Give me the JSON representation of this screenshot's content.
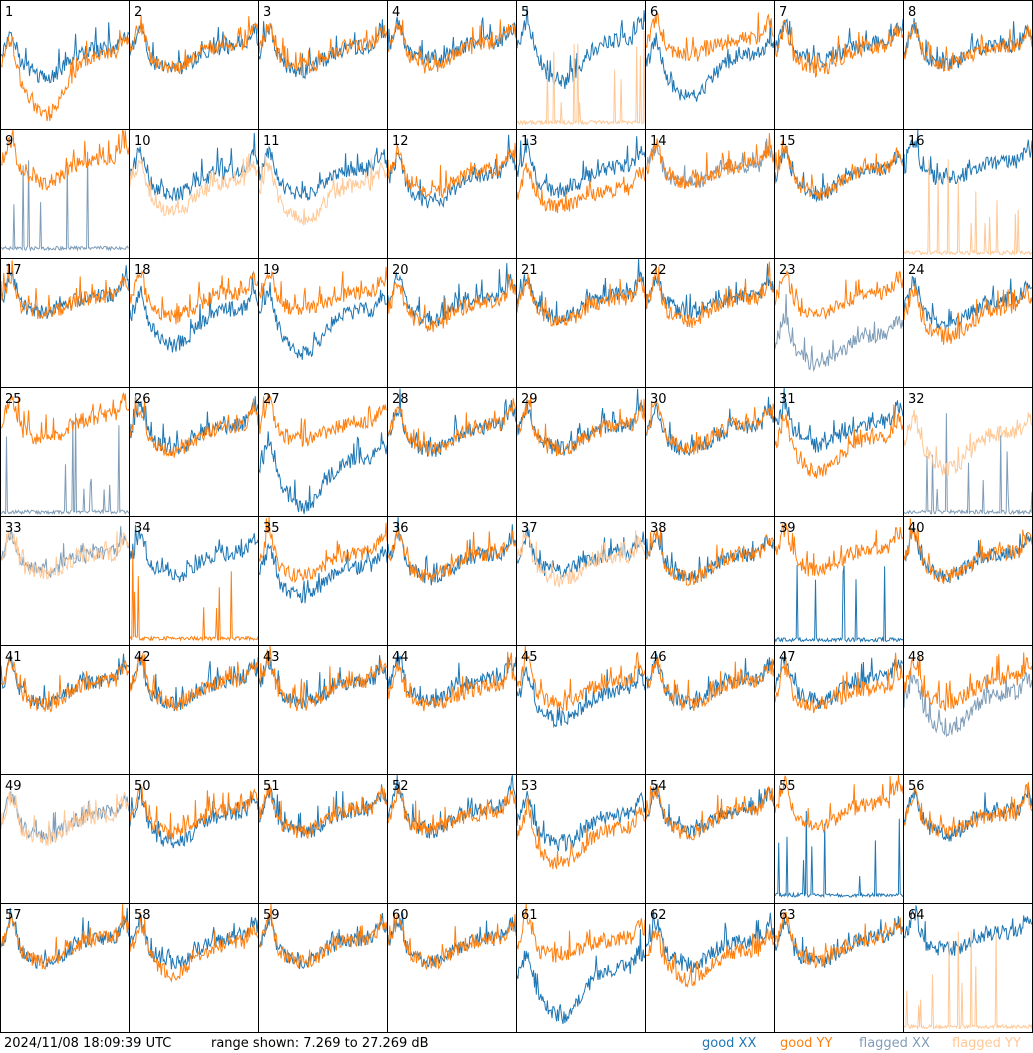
{
  "footer": {
    "timestamp": "2024/11/08 18:09:39 UTC",
    "range": "range shown: 7.269 to 27.269 dB"
  },
  "legend": [
    {
      "label": "good XX",
      "color": "#1f77b4"
    },
    {
      "label": "good YY",
      "color": "#ff7f0e"
    },
    {
      "label": "flagged XX",
      "color": "#7f9db8"
    },
    {
      "label": "flagged YY",
      "color": "#ffc896"
    }
  ],
  "chart_data": {
    "type": "line",
    "layout": "8x8 small multiples",
    "ylim": [
      7.269,
      27.269
    ],
    "ylabel": "",
    "panels": [
      {
        "id": "1",
        "xx": {
          "status": "good",
          "level": 18.6,
          "dip": 4
        },
        "yy": {
          "status": "good",
          "level": 17.8,
          "dip": 9
        }
      },
      {
        "id": "2",
        "xx": {
          "status": "good",
          "level": 19.0,
          "dip": 3
        },
        "yy": {
          "status": "good",
          "level": 19.3,
          "dip": 3
        }
      },
      {
        "id": "3",
        "xx": {
          "status": "good",
          "level": 18.8,
          "dip": 3
        },
        "yy": {
          "status": "good",
          "level": 19.2,
          "dip": 3
        }
      },
      {
        "id": "4",
        "xx": {
          "status": "good",
          "level": 19.6,
          "dip": 2
        },
        "yy": {
          "status": "good",
          "level": 19.4,
          "dip": 3
        }
      },
      {
        "id": "5",
        "xx": {
          "status": "good",
          "level": 20.0,
          "dip": 6
        },
        "yy": {
          "status": "flagged",
          "level": 8.0,
          "spikes": true
        }
      },
      {
        "id": "6",
        "xx": {
          "status": "good",
          "level": 17.5,
          "dip": 6
        },
        "yy": {
          "status": "good",
          "level": 20.2,
          "dip": 2
        }
      },
      {
        "id": "7",
        "xx": {
          "status": "good",
          "level": 19.4,
          "dip": 2
        },
        "yy": {
          "status": "good",
          "level": 19.0,
          "dip": 3
        }
      },
      {
        "id": "8",
        "xx": {
          "status": "good",
          "level": 19.0,
          "dip": 2
        },
        "yy": {
          "status": "good",
          "level": 18.8,
          "dip": 2
        }
      },
      {
        "id": "9",
        "xx": {
          "status": "flagged",
          "level": 8.5,
          "spikes": true
        },
        "yy": {
          "status": "good",
          "level": 21.5,
          "dip": 3
        }
      },
      {
        "id": "10",
        "xx": {
          "status": "good",
          "level": 19.6,
          "dip": 3
        },
        "yy": {
          "status": "flagged",
          "level": 18.0,
          "dip": 4
        }
      },
      {
        "id": "11",
        "xx": {
          "status": "good",
          "level": 19.8,
          "dip": 3
        },
        "yy": {
          "status": "flagged",
          "level": 17.6,
          "dip": 5
        }
      },
      {
        "id": "12",
        "xx": {
          "status": "good",
          "level": 19.2,
          "dip": 4
        },
        "yy": {
          "status": "good",
          "level": 19.8,
          "dip": 3
        }
      },
      {
        "id": "13",
        "xx": {
          "status": "good",
          "level": 20.2,
          "dip": 3
        },
        "yy": {
          "status": "good",
          "level": 16.8,
          "dip": 2
        }
      },
      {
        "id": "14",
        "xx": {
          "status": "flagged",
          "level": 20.4,
          "dip": 2
        },
        "yy": {
          "status": "good",
          "level": 20.6,
          "dip": 2
        }
      },
      {
        "id": "15",
        "xx": {
          "status": "good",
          "level": 19.8,
          "dip": 3
        },
        "yy": {
          "status": "good",
          "level": 20.0,
          "dip": 3
        }
      },
      {
        "id": "16",
        "xx": {
          "status": "good",
          "level": 21.0,
          "dip": 2
        },
        "yy": {
          "status": "flagged",
          "level": 7.8,
          "spikes": true
        }
      },
      {
        "id": "17",
        "xx": {
          "status": "good",
          "level": 20.4,
          "dip": 2
        },
        "yy": {
          "status": "good",
          "level": 20.2,
          "dip": 2
        }
      },
      {
        "id": "18",
        "xx": {
          "status": "good",
          "level": 18.2,
          "dip": 5
        },
        "yy": {
          "status": "good",
          "level": 20.6,
          "dip": 3
        }
      },
      {
        "id": "19",
        "xx": {
          "status": "good",
          "level": 18.0,
          "dip": 6
        },
        "yy": {
          "status": "good",
          "level": 20.8,
          "dip": 2
        }
      },
      {
        "id": "20",
        "xx": {
          "status": "good",
          "level": 20.2,
          "dip": 3
        },
        "yy": {
          "status": "good",
          "level": 19.4,
          "dip": 3
        }
      },
      {
        "id": "21",
        "xx": {
          "status": "good",
          "level": 20.4,
          "dip": 3
        },
        "yy": {
          "status": "good",
          "level": 19.8,
          "dip": 3
        }
      },
      {
        "id": "22",
        "xx": {
          "status": "good",
          "level": 20.2,
          "dip": 2
        },
        "yy": {
          "status": "good",
          "level": 20.0,
          "dip": 3
        }
      },
      {
        "id": "23",
        "xx": {
          "status": "flagged",
          "level": 14.0,
          "dip": 4
        },
        "yy": {
          "status": "good",
          "level": 20.8,
          "dip": 3
        }
      },
      {
        "id": "24",
        "xx": {
          "status": "good",
          "level": 19.6,
          "dip": 3
        },
        "yy": {
          "status": "good",
          "level": 18.4,
          "dip": 4
        }
      },
      {
        "id": "25",
        "xx": {
          "status": "flagged",
          "level": 7.6,
          "spikes": true
        },
        "yy": {
          "status": "good",
          "level": 21.6,
          "dip": 3
        }
      },
      {
        "id": "26",
        "xx": {
          "status": "good",
          "level": 20.2,
          "dip": 3
        },
        "yy": {
          "status": "good",
          "level": 20.0,
          "dip": 3
        }
      },
      {
        "id": "27",
        "xx": {
          "status": "good",
          "level": 15.0,
          "dip": 7
        },
        "yy": {
          "status": "good",
          "level": 20.6,
          "dip": 2
        }
      },
      {
        "id": "28",
        "xx": {
          "status": "good",
          "level": 20.0,
          "dip": 3
        },
        "yy": {
          "status": "good",
          "level": 20.2,
          "dip": 3
        }
      },
      {
        "id": "29",
        "xx": {
          "status": "good",
          "level": 20.2,
          "dip": 3
        },
        "yy": {
          "status": "good",
          "level": 20.0,
          "dip": 3
        }
      },
      {
        "id": "30",
        "xx": {
          "status": "good",
          "level": 20.0,
          "dip": 3
        },
        "yy": {
          "status": "good",
          "level": 20.4,
          "dip": 3
        }
      },
      {
        "id": "31",
        "xx": {
          "status": "good",
          "level": 20.6,
          "dip": 3
        },
        "yy": {
          "status": "good",
          "level": 18.4,
          "dip": 5
        }
      },
      {
        "id": "32",
        "xx": {
          "status": "flagged",
          "level": 7.6,
          "spikes": true
        },
        "yy": {
          "status": "flagged",
          "level": 19.0,
          "dip": 5
        }
      },
      {
        "id": "33",
        "xx": {
          "status": "flagged",
          "level": 20.4,
          "dip": 2
        },
        "yy": {
          "status": "flagged",
          "level": 20.2,
          "dip": 2
        }
      },
      {
        "id": "34",
        "xx": {
          "status": "good",
          "level": 20.4,
          "dip": 3
        },
        "yy": {
          "status": "good",
          "level": 8.0,
          "spikes": true
        }
      },
      {
        "id": "35",
        "xx": {
          "status": "good",
          "level": 18.2,
          "dip": 4
        },
        "yy": {
          "status": "good",
          "level": 20.4,
          "dip": 3
        }
      },
      {
        "id": "36",
        "xx": {
          "status": "good",
          "level": 20.2,
          "dip": 3
        },
        "yy": {
          "status": "good",
          "level": 20.4,
          "dip": 3
        }
      },
      {
        "id": "37",
        "xx": {
          "status": "good",
          "level": 20.2,
          "dip": 2
        },
        "yy": {
          "status": "flagged",
          "level": 19.8,
          "dip": 3
        }
      },
      {
        "id": "38",
        "xx": {
          "status": "good",
          "level": 20.2,
          "dip": 3
        },
        "yy": {
          "status": "good",
          "level": 20.2,
          "dip": 3
        }
      },
      {
        "id": "39",
        "xx": {
          "status": "good",
          "level": 7.8,
          "spikes": true
        },
        "yy": {
          "status": "good",
          "level": 21.2,
          "dip": 3
        }
      },
      {
        "id": "40",
        "xx": {
          "status": "good",
          "level": 20.4,
          "dip": 3
        },
        "yy": {
          "status": "good",
          "level": 20.4,
          "dip": 3
        }
      },
      {
        "id": "41",
        "xx": {
          "status": "good",
          "level": 20.6,
          "dip": 3
        },
        "yy": {
          "status": "good",
          "level": 20.4,
          "dip": 3
        }
      },
      {
        "id": "42",
        "xx": {
          "status": "good",
          "level": 20.6,
          "dip": 3
        },
        "yy": {
          "status": "good",
          "level": 20.6,
          "dip": 3
        }
      },
      {
        "id": "43",
        "xx": {
          "status": "good",
          "level": 20.6,
          "dip": 3
        },
        "yy": {
          "status": "good",
          "level": 20.6,
          "dip": 3
        }
      },
      {
        "id": "44",
        "xx": {
          "status": "good",
          "level": 21.0,
          "dip": 3
        },
        "yy": {
          "status": "good",
          "level": 19.6,
          "dip": 2
        }
      },
      {
        "id": "45",
        "xx": {
          "status": "good",
          "level": 19.0,
          "dip": 4
        },
        "yy": {
          "status": "good",
          "level": 20.6,
          "dip": 3
        }
      },
      {
        "id": "46",
        "xx": {
          "status": "good",
          "level": 20.8,
          "dip": 3
        },
        "yy": {
          "status": "good",
          "level": 20.6,
          "dip": 3
        }
      },
      {
        "id": "47",
        "xx": {
          "status": "good",
          "level": 21.0,
          "dip": 3
        },
        "yy": {
          "status": "good",
          "level": 19.4,
          "dip": 2
        }
      },
      {
        "id": "48",
        "xx": {
          "status": "flagged",
          "level": 18.6,
          "dip": 5
        },
        "yy": {
          "status": "good",
          "level": 20.8,
          "dip": 3
        }
      },
      {
        "id": "49",
        "xx": {
          "status": "flagged",
          "level": 20.0,
          "dip": 3
        },
        "yy": {
          "status": "flagged",
          "level": 19.6,
          "dip": 3
        }
      },
      {
        "id": "50",
        "xx": {
          "status": "good",
          "level": 20.0,
          "dip": 4
        },
        "yy": {
          "status": "good",
          "level": 20.6,
          "dip": 3
        }
      },
      {
        "id": "51",
        "xx": {
          "status": "good",
          "level": 20.6,
          "dip": 3
        },
        "yy": {
          "status": "good",
          "level": 20.8,
          "dip": 3
        }
      },
      {
        "id": "52",
        "xx": {
          "status": "good",
          "level": 21.0,
          "dip": 3
        },
        "yy": {
          "status": "good",
          "level": 20.2,
          "dip": 2
        }
      },
      {
        "id": "53",
        "xx": {
          "status": "good",
          "level": 19.8,
          "dip": 4
        },
        "yy": {
          "status": "good",
          "level": 17.6,
          "dip": 5
        }
      },
      {
        "id": "54",
        "xx": {
          "status": "good",
          "level": 20.8,
          "dip": 3
        },
        "yy": {
          "status": "good",
          "level": 20.6,
          "dip": 3
        }
      },
      {
        "id": "55",
        "xx": {
          "status": "good",
          "level": 8.2,
          "spikes": true
        },
        "yy": {
          "status": "good",
          "level": 21.6,
          "dip": 3
        }
      },
      {
        "id": "56",
        "xx": {
          "status": "good",
          "level": 20.4,
          "dip": 3
        },
        "yy": {
          "status": "good",
          "level": 20.0,
          "dip": 2
        }
      },
      {
        "id": "57",
        "xx": {
          "status": "good",
          "level": 20.6,
          "dip": 3
        },
        "yy": {
          "status": "good",
          "level": 20.6,
          "dip": 3
        }
      },
      {
        "id": "58",
        "xx": {
          "status": "good",
          "level": 20.6,
          "dip": 3
        },
        "yy": {
          "status": "good",
          "level": 19.8,
          "dip": 4
        }
      },
      {
        "id": "59",
        "xx": {
          "status": "good",
          "level": 20.6,
          "dip": 3
        },
        "yy": {
          "status": "good",
          "level": 20.6,
          "dip": 3
        }
      },
      {
        "id": "60",
        "xx": {
          "status": "good",
          "level": 20.6,
          "dip": 3
        },
        "yy": {
          "status": "good",
          "level": 20.6,
          "dip": 3
        }
      },
      {
        "id": "61",
        "xx": {
          "status": "good",
          "level": 16.0,
          "dip": 7
        },
        "yy": {
          "status": "good",
          "level": 20.6,
          "dip": 2
        }
      },
      {
        "id": "62",
        "xx": {
          "status": "good",
          "level": 20.2,
          "dip": 3
        },
        "yy": {
          "status": "good",
          "level": 18.8,
          "dip": 4
        }
      },
      {
        "id": "63",
        "xx": {
          "status": "good",
          "level": 20.6,
          "dip": 3
        },
        "yy": {
          "status": "good",
          "level": 20.8,
          "dip": 3
        }
      },
      {
        "id": "64",
        "xx": {
          "status": "good",
          "level": 21.6,
          "dip": 2
        },
        "yy": {
          "status": "flagged",
          "level": 7.8,
          "spikes": true
        }
      }
    ]
  }
}
